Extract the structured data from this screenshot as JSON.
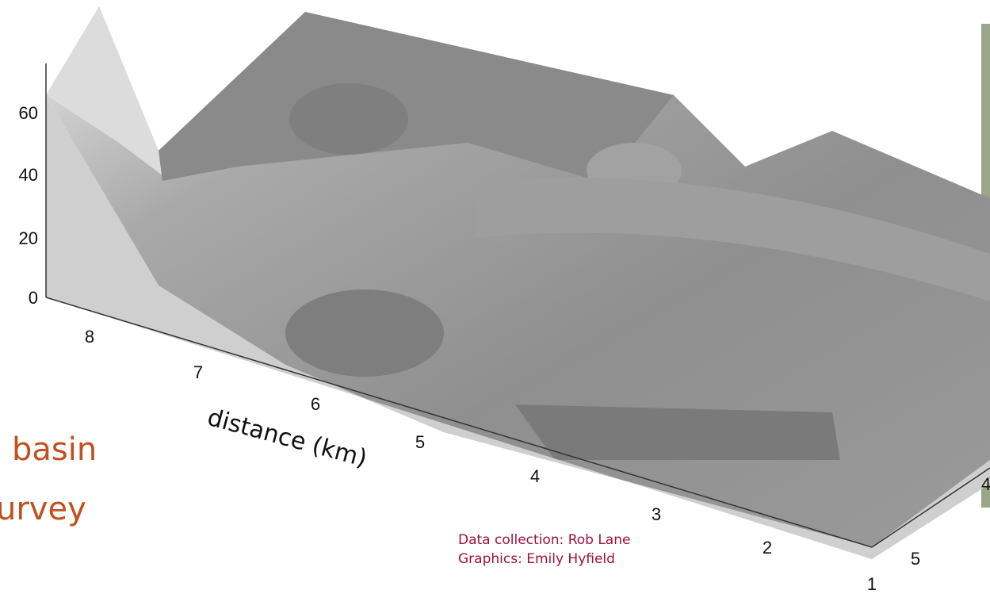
{
  "plot": {
    "z_ticks": [
      "0",
      "20",
      "40",
      "60"
    ],
    "distance_ticks": [
      "8",
      "7",
      "6",
      "5",
      "4",
      "3",
      "2",
      "1"
    ],
    "distance_label": "distance (km)",
    "side_ticks": [
      "5",
      "4"
    ]
  },
  "slide": {
    "title_lines": [
      "basin",
      "urvey"
    ]
  },
  "credits": [
    "Data collection: Rob Lane",
    "Graphics: Emily Hyfield"
  ]
}
